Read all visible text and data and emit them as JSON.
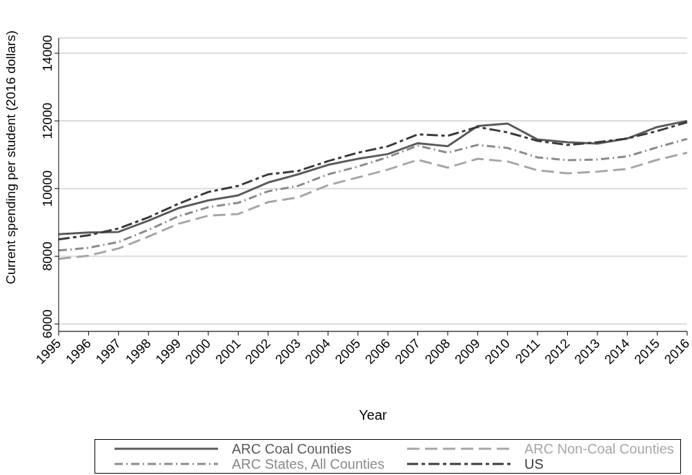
{
  "chart_data": {
    "type": "line",
    "xlabel": "Year",
    "ylabel": "Current spending per student (2016 dollars)",
    "categories": [
      "1995",
      "1996",
      "1997",
      "1998",
      "1999",
      "2000",
      "2001",
      "2002",
      "2003",
      "2004",
      "2005",
      "2006",
      "2007",
      "2008",
      "2009",
      "2010",
      "2011",
      "2012",
      "2013",
      "2014",
      "2015",
      "2016"
    ],
    "series": [
      {
        "name": "ARC Coal Counties",
        "color": "#5a5a5a",
        "line_style": "solid",
        "values": [
          8650,
          8700,
          8720,
          9050,
          9420,
          9650,
          9800,
          10180,
          10420,
          10700,
          10880,
          11020,
          11340,
          11250,
          11850,
          11920,
          11450,
          11370,
          11330,
          11480,
          11820,
          12000
        ]
      },
      {
        "name": "ARC Non-Coal Counties",
        "color": "#a6a6a6",
        "line_style": "dashed",
        "values": [
          7920,
          8020,
          8230,
          8580,
          8960,
          9200,
          9250,
          9600,
          9740,
          10100,
          10330,
          10560,
          10850,
          10620,
          10880,
          10800,
          10540,
          10450,
          10500,
          10580,
          10850,
          11060
        ]
      },
      {
        "name": "ARC States, All Counties",
        "color": "#8a8a8a",
        "line_style": "dashdot",
        "values": [
          8170,
          8250,
          8420,
          8780,
          9180,
          9450,
          9580,
          9920,
          10080,
          10420,
          10650,
          10930,
          11270,
          11060,
          11290,
          11200,
          10920,
          10840,
          10860,
          10950,
          11220,
          11470
        ]
      },
      {
        "name": "US",
        "color": "#3a3a3a",
        "line_style": "longdashdot",
        "values": [
          8500,
          8620,
          8820,
          9150,
          9550,
          9900,
          10080,
          10420,
          10520,
          10810,
          11060,
          11250,
          11600,
          11560,
          11820,
          11660,
          11410,
          11290,
          11370,
          11480,
          11700,
          11960
        ]
      }
    ],
    "ylim": [
      5780,
      14450
    ],
    "yticks": [
      6000,
      8000,
      10000,
      12000,
      14000
    ],
    "grid": "y",
    "legend": "bottom",
    "marker": "none"
  }
}
